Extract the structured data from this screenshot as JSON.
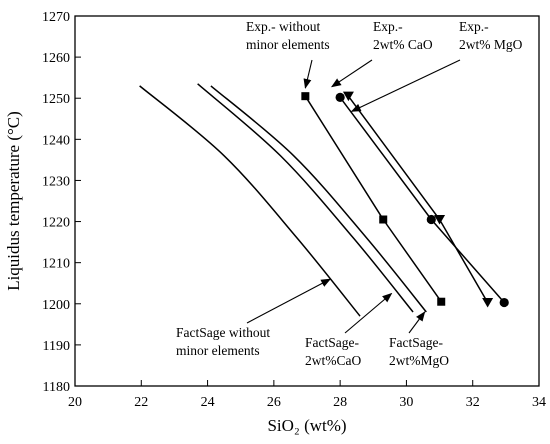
{
  "chart_data": {
    "type": "line",
    "title": "",
    "xlabel": "SiO₂ (wt%)",
    "ylabel": "Liquidus temperature (°C)",
    "xlim": [
      20,
      34
    ],
    "ylim": [
      1180,
      1270
    ],
    "xticks": [
      20,
      22,
      24,
      26,
      28,
      30,
      32,
      34
    ],
    "yticks": [
      1180,
      1190,
      1200,
      1210,
      1220,
      1230,
      1240,
      1250,
      1260,
      1270
    ],
    "legend": "none",
    "grid": false,
    "series": [
      {
        "name": "FactSage without minor elements",
        "style": "curve",
        "points": [
          [
            21.95,
            1253
          ],
          [
            24.5,
            1236
          ],
          [
            26.7,
            1216
          ],
          [
            28.6,
            1197
          ]
        ]
      },
      {
        "name": "FactSage-2wt%CaO",
        "style": "curve",
        "points": [
          [
            23.7,
            1253.5
          ],
          [
            26.2,
            1236
          ],
          [
            28.4,
            1216
          ],
          [
            30.2,
            1198
          ]
        ]
      },
      {
        "name": "FactSage-2wt%MgO",
        "style": "curve",
        "points": [
          [
            24.1,
            1253
          ],
          [
            26.6,
            1236
          ],
          [
            28.8,
            1216
          ],
          [
            30.6,
            1198
          ]
        ]
      },
      {
        "name": "Exp.- without minor elements",
        "style": "line-markers",
        "marker": "square",
        "points": [
          [
            26.95,
            1250.5
          ],
          [
            29.3,
            1220.5
          ],
          [
            31.05,
            1200.5
          ]
        ]
      },
      {
        "name": "Exp.- 2wt% CaO",
        "style": "line-markers",
        "marker": "circle",
        "points": [
          [
            28.0,
            1250.2
          ],
          [
            30.75,
            1220.5
          ],
          [
            32.95,
            1200.3
          ]
        ]
      },
      {
        "name": "Exp.- 2wt% MgO",
        "style": "line-markers",
        "marker": "triangle-down",
        "points": [
          [
            28.25,
            1250.5
          ],
          [
            31.0,
            1220.5
          ],
          [
            32.45,
            1200.3
          ]
        ]
      }
    ],
    "annotations": [
      {
        "id": "exp-none",
        "lines": [
          "Exp.- without",
          "minor elements"
        ],
        "target": [
          26.95,
          1252.5
        ]
      },
      {
        "id": "exp-cao",
        "lines": [
          "Exp.-",
          "2wt% CaO"
        ],
        "target": [
          27.75,
          1252.8
        ]
      },
      {
        "id": "exp-mgo",
        "lines": [
          "Exp.-",
          "2wt% MgO"
        ],
        "target": [
          28.35,
          1246.8
        ]
      },
      {
        "id": "fs-none",
        "lines": [
          "FactSage without",
          "minor elements"
        ],
        "target": [
          27.7,
          1206
        ]
      },
      {
        "id": "fs-cao",
        "lines": [
          "FactSage-",
          "2wt%CaO"
        ],
        "target": [
          29.55,
          1202.5
        ]
      },
      {
        "id": "fs-mgo",
        "lines": [
          "FactSage-",
          "2wt%MgO"
        ],
        "target": [
          30.55,
          1198
        ]
      }
    ]
  }
}
